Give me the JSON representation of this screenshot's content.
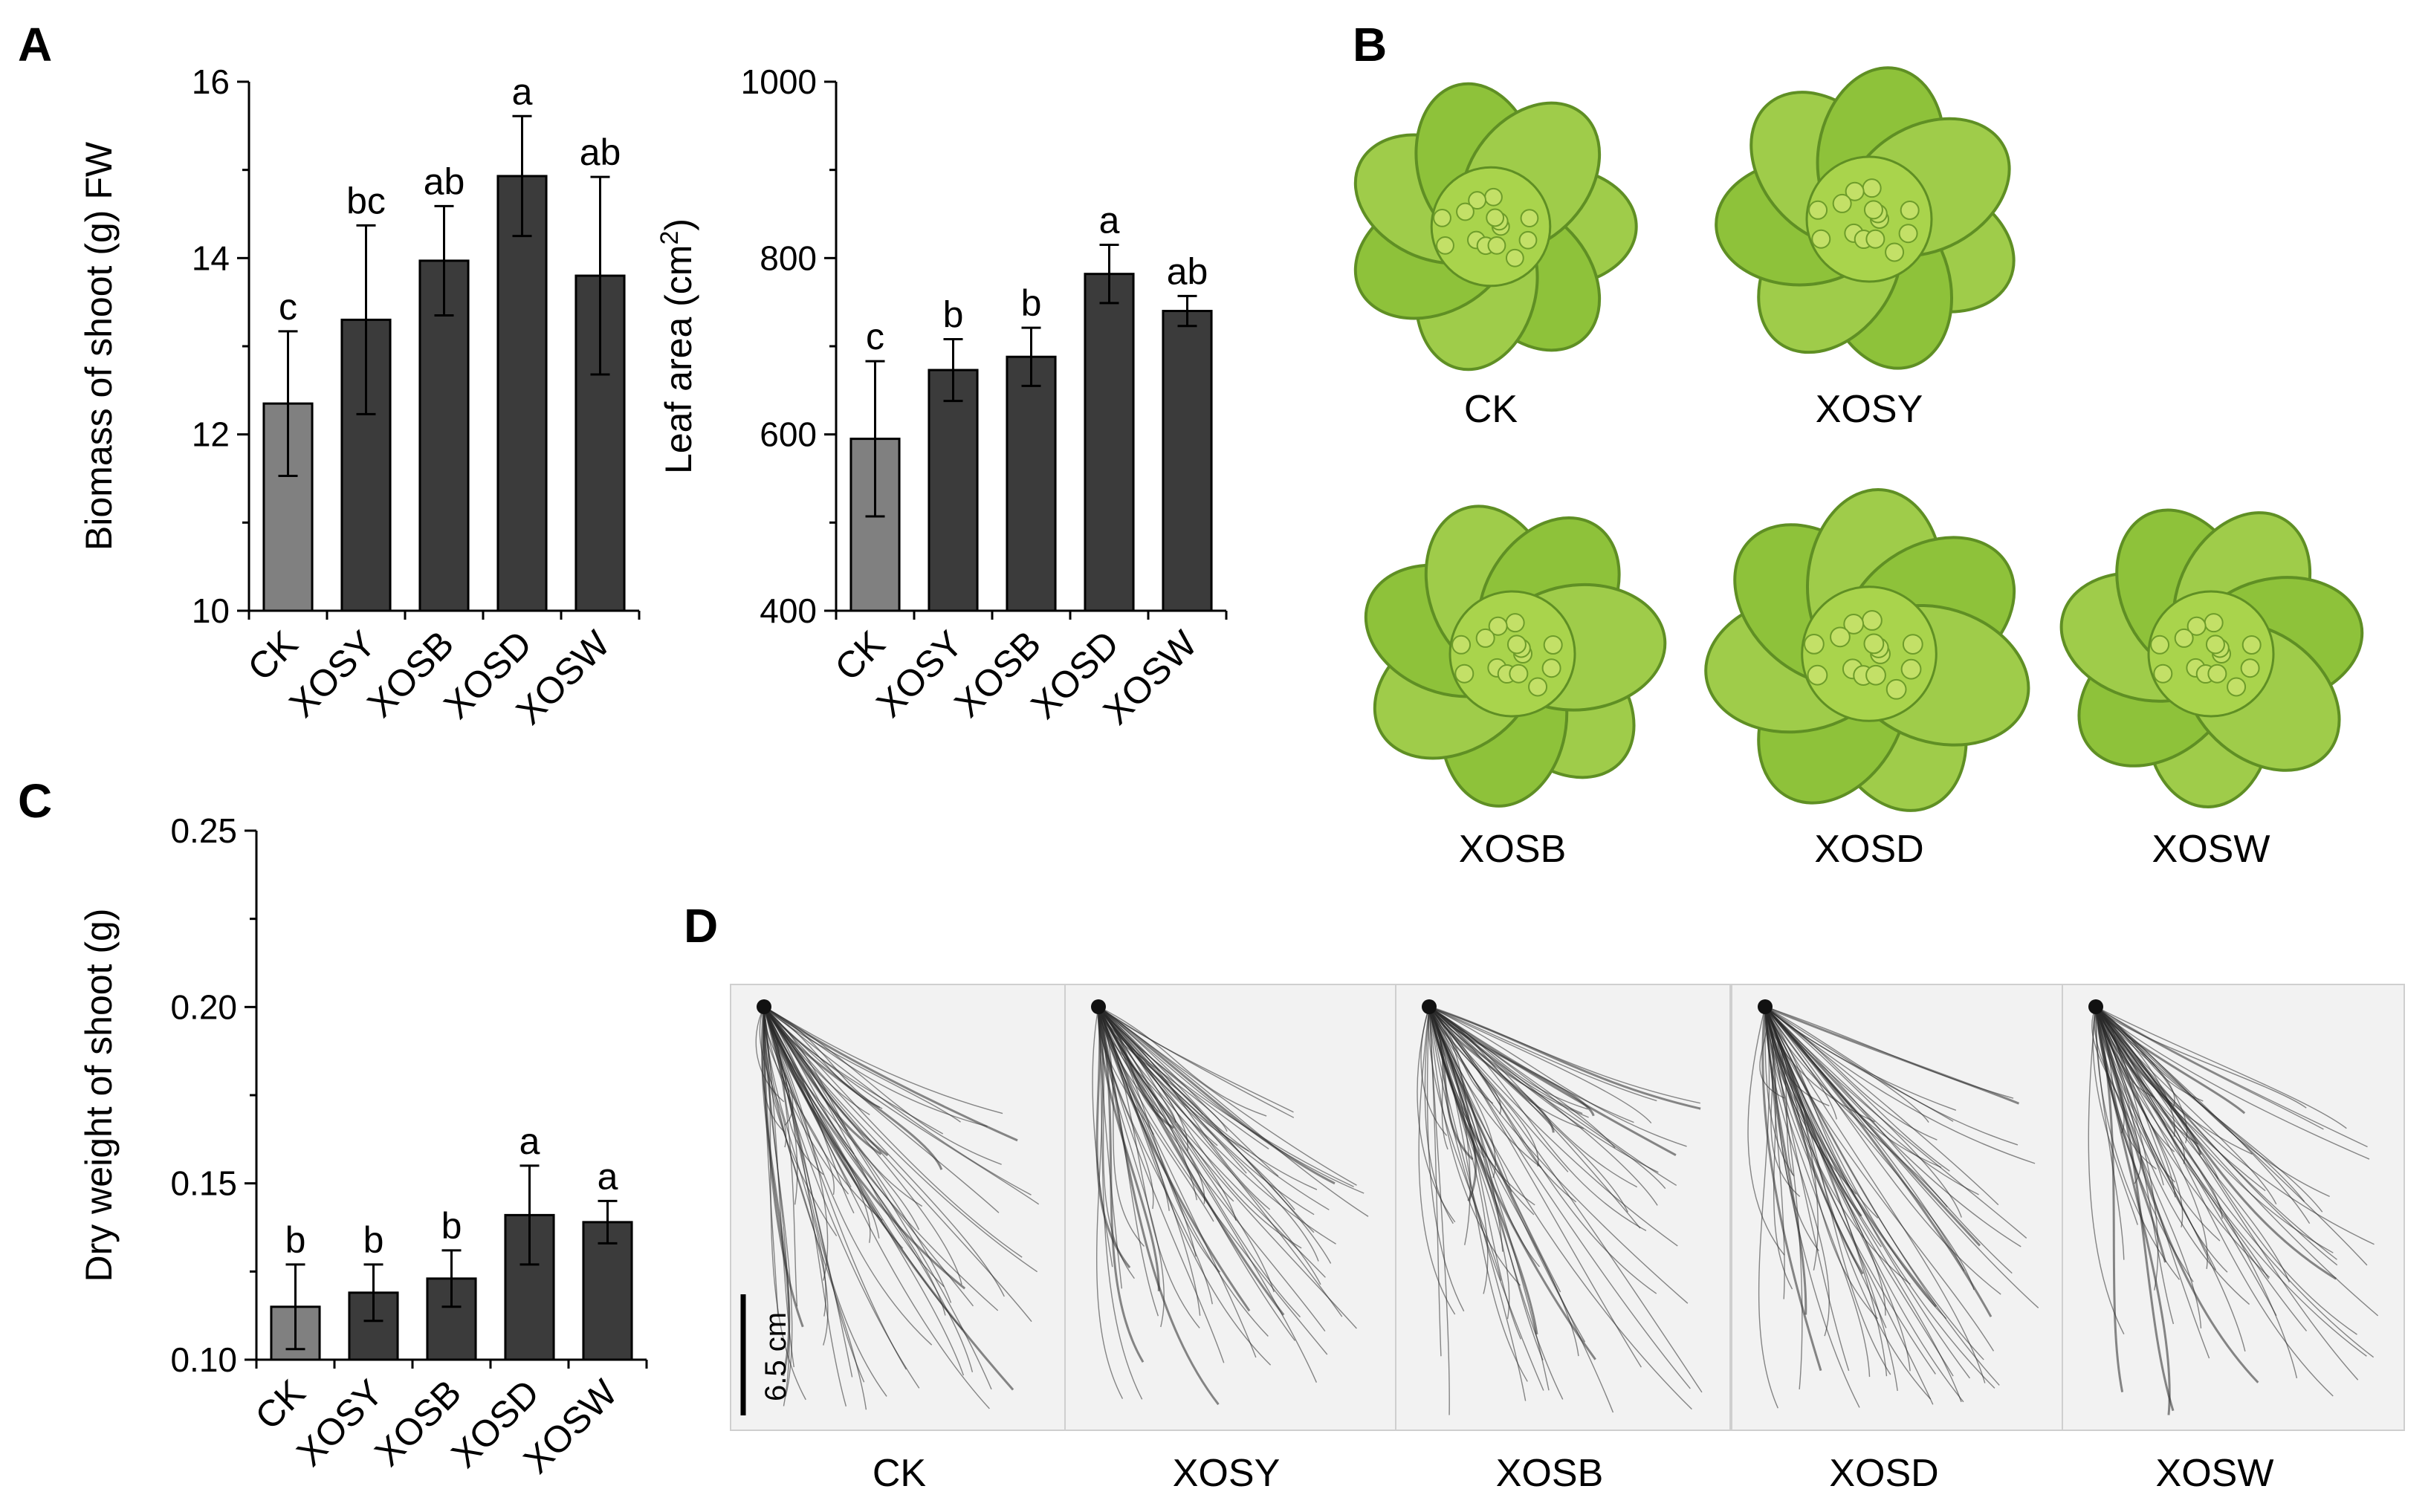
{
  "panels": {
    "A": "A",
    "B": "B",
    "C": "C",
    "D": "D"
  },
  "chart_data": [
    {
      "id": "biomass",
      "type": "bar",
      "categories": [
        "CK",
        "XOSY",
        "XOSB",
        "XOSD",
        "XOSW"
      ],
      "values": [
        12.35,
        13.3,
        13.97,
        14.93,
        13.8
      ],
      "errors": [
        0.82,
        1.07,
        0.62,
        0.68,
        1.12
      ],
      "significance": [
        "c",
        "bc",
        "ab",
        "a",
        "ab"
      ],
      "bar_colors": [
        "#808080",
        "#3b3b3b",
        "#3b3b3b",
        "#3b3b3b",
        "#3b3b3b"
      ],
      "ylabel": "Biomass of shoot (g) FW",
      "ylim": [
        10,
        16
      ],
      "yticks": [
        10,
        12,
        14,
        16
      ],
      "ytick_labels": [
        "10",
        "12",
        "14",
        "16"
      ]
    },
    {
      "id": "leafarea",
      "type": "bar",
      "categories": [
        "CK",
        "XOSY",
        "XOSB",
        "XOSD",
        "XOSW"
      ],
      "values": [
        595,
        673,
        688,
        782,
        740
      ],
      "errors": [
        88,
        35,
        33,
        33,
        17
      ],
      "significance": [
        "c",
        "b",
        "b",
        "a",
        "ab"
      ],
      "bar_colors": [
        "#808080",
        "#3b3b3b",
        "#3b3b3b",
        "#3b3b3b",
        "#3b3b3b"
      ],
      "ylabel": "Leaf area (cm",
      "ylabel_sup": "2",
      "ylabel_end": ")",
      "ylim": [
        400,
        1000
      ],
      "yticks": [
        400,
        600,
        800,
        1000
      ],
      "ytick_labels": [
        "400",
        "600",
        "800",
        "1000"
      ]
    },
    {
      "id": "dryweight",
      "type": "bar",
      "categories": [
        "CK",
        "XOSY",
        "XOSB",
        "XOSD",
        "XOSW"
      ],
      "values": [
        0.115,
        0.119,
        0.123,
        0.141,
        0.139
      ],
      "errors": [
        0.012,
        0.008,
        0.008,
        0.014,
        0.006
      ],
      "significance": [
        "b",
        "b",
        "b",
        "a",
        "a"
      ],
      "bar_colors": [
        "#808080",
        "#3b3b3b",
        "#3b3b3b",
        "#3b3b3b",
        "#3b3b3b"
      ],
      "ylabel": "Dry weight of shoot (g)",
      "ylim": [
        0.1,
        0.25
      ],
      "yticks": [
        0.1,
        0.15,
        0.2,
        0.25
      ],
      "ytick_labels": [
        "0.10",
        "0.15",
        "0.20",
        "0.25"
      ]
    }
  ],
  "plants": {
    "labels": [
      "CK",
      "XOSY",
      "XOSB",
      "XOSD",
      "XOSW"
    ],
    "leaf_color": "#8ec23a",
    "leaf_dark": "#5f8f24"
  },
  "roots": {
    "labels": [
      "CK",
      "XOSY",
      "XOSB",
      "XOSD",
      "XOSW"
    ],
    "scale_label": "6.5 cm",
    "root_color": "#2a2a2a"
  }
}
